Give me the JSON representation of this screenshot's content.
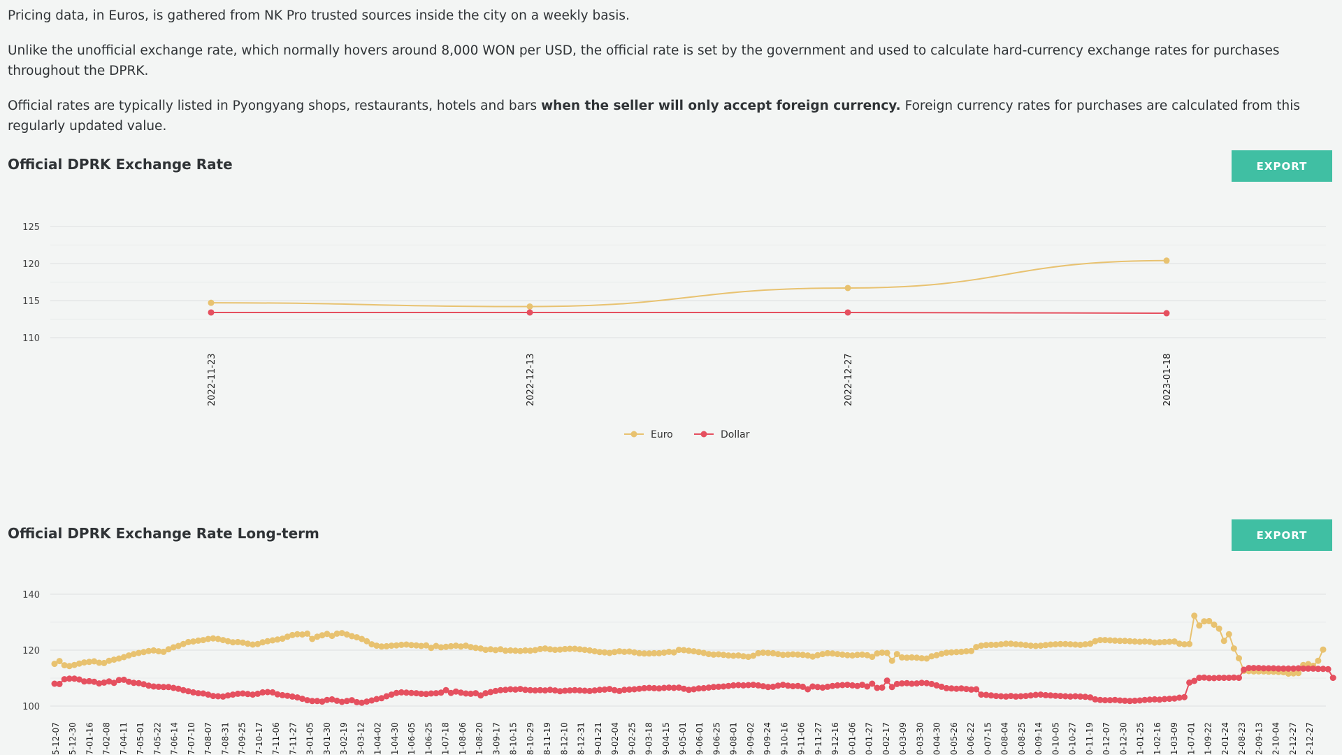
{
  "paragraphs": {
    "p1": "Pricing data, in Euros, is gathered from NK Pro trusted sources inside the city on a weekly basis.",
    "p2": "Unlike the unofficial exchange rate, which normally hovers around 8,000 WON per USD, the official rate is set by the government and used to calculate hard-currency exchange rates for purchases throughout the DPRK.",
    "p3_before": "Official rates are typically listed in Pyongyang shops, restaurants, hotels and bars ",
    "p3_bold": "when the seller will only accept foreign currency.",
    "p3_after": " Foreign currency rates for purchases are calculated from this regularly updated value."
  },
  "charts": {
    "short_title": "Official DPRK Exchange Rate",
    "long_title": "Official DPRK Exchange Rate Long-term",
    "export_label": "EXPORT"
  },
  "colors": {
    "euro": "#e8c270",
    "dollar": "#e5505f",
    "grid": "#dcdfe0",
    "button": "#40bfa3"
  },
  "chart_data": [
    {
      "type": "line",
      "title": "Official DPRK Exchange Rate",
      "x": [
        "2022-11-23",
        "2022-12-13",
        "2022-12-27",
        "2023-01-18"
      ],
      "series": [
        {
          "name": "Euro",
          "values": [
            114.7,
            114.2,
            116.7,
            120.4
          ]
        },
        {
          "name": "Dollar",
          "values": [
            113.4,
            113.4,
            113.4,
            113.3
          ]
        }
      ],
      "yticks": [
        110,
        115,
        120,
        125
      ],
      "ylim": [
        110,
        127
      ],
      "grid": true,
      "legend": "bottom-center"
    },
    {
      "type": "line",
      "title": "Official DPRK Exchange Rate Long-term",
      "xticks": [
        "5-12-07",
        "5-12-30",
        "7-01-16",
        "7-02-08",
        "7-04-11",
        "7-05-01",
        "7-05-22",
        "7-06-14",
        "7-07-10",
        "7-08-07",
        "7-08-31",
        "7-09-25",
        "7-10-17",
        "7-11-06",
        "7-11-27",
        "3-01-05",
        "3-01-30",
        "3-02-19",
        "3-03-12",
        "1-04-02",
        "1-04-30",
        "1-06-05",
        "1-06-25",
        "1-07-18",
        "1-08-06",
        "1-08-20",
        "3-09-17",
        "8-10-15",
        "8-10-29",
        "8-11-19",
        "8-12-10",
        "8-12-31",
        "9-01-21",
        "9-02-04",
        "9-02-25",
        "9-03-18",
        "9-04-15",
        "9-05-01",
        "9-06-01",
        "9-06-25",
        "9-08-01",
        "9-09-02",
        "9-09-24",
        "9-10-16",
        "9-11-06",
        "9-11-27",
        "9-12-16",
        "0-01-06",
        "0-01-27",
        "0-02-17",
        "0-03-09",
        "0-03-30",
        "0-04-30",
        "0-05-26",
        "0-06-22",
        "0-07-15",
        "0-08-04",
        "0-08-25",
        "0-09-14",
        "0-10-05",
        "0-10-27",
        "0-11-19",
        "0-12-07",
        "0-12-30",
        "1-01-25",
        "1-02-16",
        "1-03-09",
        "1-07-01",
        "1-09-22",
        "2-01-24",
        "2-08-23",
        "2-09-13",
        "2-10-04",
        "2-12-27",
        "2-12-27"
      ],
      "series": [
        {
          "name": "Euro",
          "values": [
            115.1,
            116.1,
            114.6,
            114.3,
            114.7,
            115.2,
            115.6,
            115.8,
            116.0,
            115.5,
            115.4,
            116.2,
            116.6,
            117.0,
            117.5,
            118.1,
            118.6,
            119.0,
            119.3,
            119.7,
            119.9,
            119.6,
            119.4,
            120.3,
            121.0,
            121.5,
            122.2,
            122.9,
            123.1,
            123.4,
            123.6,
            124.0,
            124.2,
            124.0,
            123.6,
            123.2,
            122.8,
            122.9,
            122.7,
            122.3,
            122.0,
            122.2,
            122.8,
            123.2,
            123.5,
            123.8,
            124.1,
            124.8,
            125.4,
            125.7,
            125.6,
            125.9,
            124.0,
            124.8,
            125.3,
            125.8,
            125.1,
            125.9,
            126.1,
            125.6,
            125.0,
            124.6,
            124.0,
            123.2,
            122.1,
            121.6,
            121.3,
            121.4,
            121.6,
            121.7,
            121.9,
            122.0,
            121.8,
            121.7,
            121.5,
            121.7,
            120.8,
            121.5,
            121.0,
            121.2,
            121.4,
            121.6,
            121.3,
            121.6,
            121.1,
            120.8,
            120.6,
            120.1,
            120.3,
            120.0,
            120.3,
            119.8,
            119.9,
            119.8,
            119.7,
            119.9,
            119.8,
            120.0,
            120.4,
            120.6,
            120.3,
            120.1,
            120.2,
            120.4,
            120.5,
            120.5,
            120.3,
            120.1,
            119.9,
            119.6,
            119.3,
            119.2,
            119.0,
            119.3,
            119.6,
            119.4,
            119.5,
            119.2,
            118.9,
            118.8,
            118.8,
            118.9,
            118.9,
            119.1,
            119.4,
            119.2,
            120.1,
            120.0,
            119.8,
            119.6,
            119.3,
            119.0,
            118.6,
            118.4,
            118.5,
            118.3,
            118.1,
            118.0,
            118.1,
            117.8,
            117.6,
            118.0,
            118.9,
            119.1,
            119.0,
            118.9,
            118.6,
            118.3,
            118.4,
            118.5,
            118.4,
            118.3,
            118.1,
            117.7,
            118.2,
            118.6,
            118.9,
            118.8,
            118.6,
            118.4,
            118.2,
            118.1,
            118.3,
            118.4,
            118.2,
            117.6,
            118.8,
            119.1,
            119.0,
            116.2,
            118.6,
            117.4,
            117.3,
            117.4,
            117.3,
            117.1,
            117.0,
            117.8,
            118.2,
            118.7,
            119.1,
            119.2,
            119.3,
            119.4,
            119.6,
            119.7,
            121.1,
            121.6,
            121.8,
            121.9,
            121.9,
            122.1,
            122.3,
            122.3,
            122.1,
            122.0,
            121.8,
            121.6,
            121.5,
            121.6,
            121.8,
            122.0,
            122.1,
            122.2,
            122.2,
            122.1,
            122.0,
            121.9,
            122.1,
            122.3,
            123.2,
            123.6,
            123.6,
            123.5,
            123.4,
            123.3,
            123.3,
            123.2,
            123.1,
            123.0,
            123.1,
            123.0,
            122.7,
            122.8,
            122.9,
            123.0,
            123.1,
            122.3,
            122.1,
            122.2,
            132.3,
            128.8,
            130.3,
            130.4,
            129.1,
            127.7,
            123.3,
            125.7,
            120.6,
            117.1,
            112.6,
            112.5,
            112.4,
            112.4,
            112.4,
            112.3,
            112.3,
            112.2,
            112.1,
            111.6,
            111.7,
            111.8,
            114.7,
            115.0,
            114.4,
            116.2,
            120.2
          ],
          "note": "values estimated from the figure"
        },
        {
          "name": "Dollar",
          "values": [
            108.0,
            107.9,
            109.6,
            109.8,
            109.8,
            109.5,
            108.8,
            108.9,
            108.7,
            108.1,
            108.4,
            108.8,
            108.3,
            109.3,
            109.4,
            108.7,
            108.3,
            108.2,
            107.8,
            107.3,
            107.0,
            106.9,
            106.8,
            106.8,
            106.5,
            106.2,
            105.7,
            105.3,
            104.9,
            104.6,
            104.5,
            104.1,
            103.6,
            103.5,
            103.4,
            103.8,
            104.1,
            104.4,
            104.5,
            104.3,
            104.1,
            104.4,
            104.9,
            105.0,
            104.9,
            104.2,
            103.9,
            103.7,
            103.4,
            103.1,
            102.6,
            102.1,
            101.8,
            101.8,
            101.6,
            102.2,
            102.4,
            101.9,
            101.5,
            101.8,
            102.1,
            101.4,
            101.2,
            101.6,
            102.0,
            102.5,
            102.8,
            103.5,
            104.1,
            104.7,
            104.9,
            104.8,
            104.7,
            104.6,
            104.4,
            104.3,
            104.5,
            104.6,
            104.8,
            105.7,
            104.7,
            105.2,
            104.8,
            104.5,
            104.4,
            104.6,
            103.8,
            104.6,
            105.0,
            105.4,
            105.7,
            105.8,
            106.0,
            105.9,
            106.1,
            105.8,
            105.7,
            105.6,
            105.7,
            105.6,
            105.8,
            105.6,
            105.3,
            105.5,
            105.6,
            105.7,
            105.6,
            105.5,
            105.4,
            105.6,
            105.8,
            105.9,
            106.1,
            105.7,
            105.4,
            105.8,
            105.9,
            106.0,
            106.2,
            106.4,
            106.5,
            106.4,
            106.3,
            106.5,
            106.6,
            106.5,
            106.6,
            106.2,
            105.8,
            106.0,
            106.3,
            106.4,
            106.6,
            106.8,
            106.9,
            107.0,
            107.2,
            107.4,
            107.5,
            107.4,
            107.5,
            107.6,
            107.4,
            107.1,
            106.8,
            106.9,
            107.3,
            107.6,
            107.3,
            107.1,
            107.2,
            106.9,
            106.0,
            107.0,
            106.8,
            106.6,
            106.9,
            107.2,
            107.4,
            107.5,
            107.6,
            107.4,
            107.2,
            107.6,
            107.0,
            108.0,
            106.5,
            106.6,
            109.1,
            106.8,
            107.9,
            108.1,
            108.2,
            108.0,
            108.1,
            108.3,
            108.2,
            107.9,
            107.4,
            106.9,
            106.4,
            106.3,
            106.2,
            106.3,
            106.1,
            105.9,
            106.0,
            104.1,
            104.0,
            103.8,
            103.6,
            103.5,
            103.4,
            103.6,
            103.4,
            103.5,
            103.6,
            103.8,
            104.0,
            104.1,
            103.9,
            103.8,
            103.7,
            103.6,
            103.5,
            103.4,
            103.5,
            103.4,
            103.3,
            103.1,
            102.4,
            102.2,
            102.1,
            102.1,
            102.2,
            102.0,
            101.9,
            101.8,
            101.9,
            102.0,
            102.2,
            102.3,
            102.4,
            102.3,
            102.5,
            102.6,
            102.7,
            103.0,
            103.2,
            108.4,
            109.0,
            110.1,
            110.2,
            110.0,
            110.0,
            110.1,
            110.1,
            110.1,
            110.2,
            110.1,
            113.0,
            113.6,
            113.6,
            113.6,
            113.5,
            113.5,
            113.5,
            113.4,
            113.4,
            113.4,
            113.4,
            113.5,
            113.4,
            113.4,
            113.4,
            113.3,
            113.3,
            113.2,
            110.1
          ]
        }
      ],
      "yticks": [
        100,
        120,
        140
      ],
      "ylim": [
        100,
        142
      ],
      "grid": true
    }
  ],
  "legend": {
    "euro": "Euro",
    "dollar": "Dollar"
  }
}
